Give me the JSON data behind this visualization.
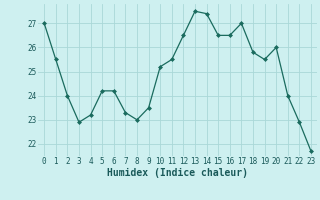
{
  "x": [
    0,
    1,
    2,
    3,
    4,
    5,
    6,
    7,
    8,
    9,
    10,
    11,
    12,
    13,
    14,
    15,
    16,
    17,
    18,
    19,
    20,
    21,
    22,
    23
  ],
  "y": [
    27.0,
    25.5,
    24.0,
    22.9,
    23.2,
    24.2,
    24.2,
    23.3,
    23.0,
    23.5,
    25.2,
    25.5,
    26.5,
    27.5,
    27.4,
    26.5,
    26.5,
    27.0,
    25.8,
    25.5,
    26.0,
    24.0,
    22.9,
    21.7
  ],
  "line_color": "#1a6b5e",
  "marker": "D",
  "marker_size": 2,
  "bg_color": "#cef0f0",
  "grid_color": "#aad8d8",
  "xlabel": "Humidex (Indice chaleur)",
  "ylim": [
    21.5,
    27.8
  ],
  "xlim": [
    -0.5,
    23.5
  ],
  "yticks": [
    22,
    23,
    24,
    25,
    26,
    27
  ],
  "xticks": [
    0,
    1,
    2,
    3,
    4,
    5,
    6,
    7,
    8,
    9,
    10,
    11,
    12,
    13,
    14,
    15,
    16,
    17,
    18,
    19,
    20,
    21,
    22,
    23
  ],
  "tick_fontsize": 5.5,
  "xlabel_fontsize": 7,
  "line_width": 0.9
}
